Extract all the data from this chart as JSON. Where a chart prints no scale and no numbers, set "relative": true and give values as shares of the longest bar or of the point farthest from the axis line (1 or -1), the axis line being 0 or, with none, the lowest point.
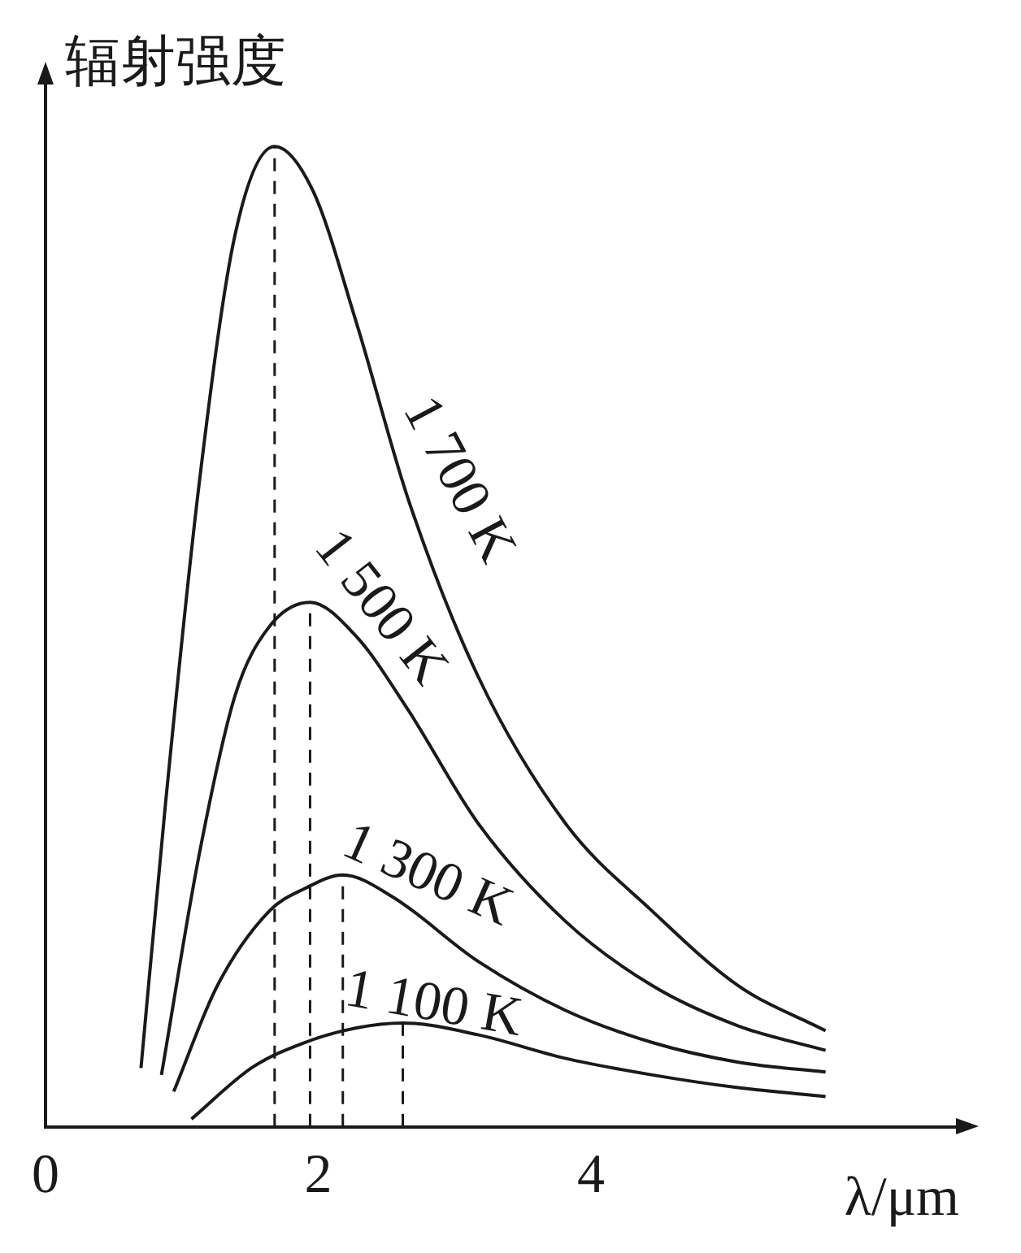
{
  "chart_data": {
    "type": "line",
    "relative": true,
    "xlabel": "λ/μm",
    "ylabel": "辐射强度",
    "xlim": [
      0,
      6.7
    ],
    "xticks": [
      0,
      2,
      4
    ],
    "grid": false,
    "legend": false,
    "line_style": "solid",
    "series": [
      {
        "name": "1 700 K",
        "color": "#1a1a1a",
        "x": [
          0.7,
          0.88,
          1.13,
          1.39,
          1.68,
          1.96,
          2.28,
          2.66,
          3.17,
          3.81,
          4.45,
          5.08,
          5.72
        ],
        "values": [
          0.06,
          0.33,
          0.66,
          0.91,
          1,
          0.955,
          0.82,
          0.64,
          0.46,
          0.31,
          0.22,
          0.144,
          0.098
        ]
      },
      {
        "name": "1 500 K",
        "color": "#1a1a1a",
        "x": [
          0.85,
          1.13,
          1.39,
          1.64,
          1.94,
          2.28,
          2.66,
          3.17,
          3.81,
          4.45,
          5.08,
          5.72
        ],
        "values": [
          0.053,
          0.28,
          0.44,
          0.51,
          0.535,
          0.5,
          0.425,
          0.31,
          0.21,
          0.144,
          0.103,
          0.078
        ]
      },
      {
        "name": "1 300 K",
        "color": "#1a1a1a",
        "x": [
          0.94,
          1.26,
          1.64,
          1.9,
          2.18,
          2.54,
          3.17,
          3.81,
          4.45,
          5.08,
          5.72
        ],
        "values": [
          0.036,
          0.144,
          0.22,
          0.243,
          0.257,
          0.235,
          0.169,
          0.119,
          0.086,
          0.066,
          0.056
        ]
      },
      {
        "name": "1 100 K",
        "color": "#1a1a1a",
        "x": [
          1.07,
          1.52,
          1.9,
          2.28,
          2.62,
          3.17,
          3.81,
          4.45,
          5.08,
          5.72
        ],
        "values": [
          0.008,
          0.061,
          0.086,
          0.101,
          0.106,
          0.094,
          0.07,
          0.053,
          0.04,
          0.031
        ]
      }
    ],
    "ref_lines": [
      {
        "axis": "x",
        "value": 1.68,
        "color": "#1a1a1a",
        "line_style": "dashed"
      },
      {
        "axis": "x",
        "value": 1.94,
        "color": "#1a1a1a",
        "line_style": "dashed"
      },
      {
        "axis": "x",
        "value": 2.18,
        "color": "#1a1a1a",
        "line_style": "dashed"
      },
      {
        "axis": "x",
        "value": 2.62,
        "color": "#1a1a1a",
        "line_style": "dashed"
      }
    ]
  }
}
